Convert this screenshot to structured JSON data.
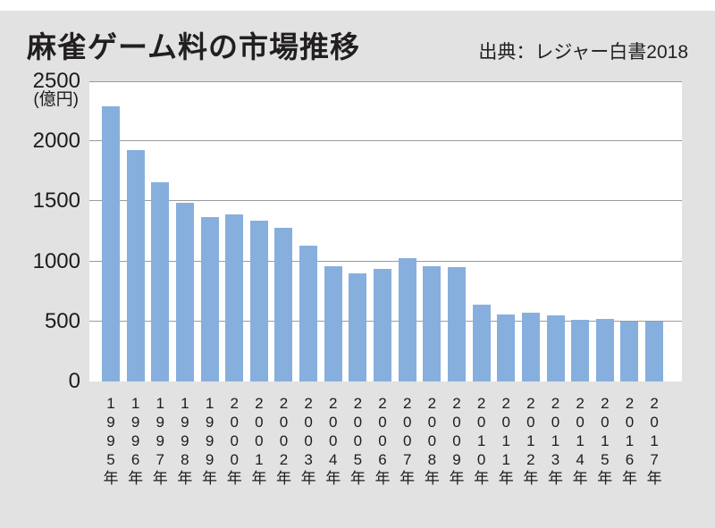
{
  "header": {
    "title": "麻雀ゲーム料の市場推移",
    "source": "出典：レジャー白書2018"
  },
  "chart_data": {
    "type": "bar",
    "title": "麻雀ゲーム料の市場推移",
    "source": "出典：レジャー白書2018",
    "unit_label": "(億円)",
    "categories": [
      "1995年",
      "1996年",
      "1997年",
      "1998年",
      "1999年",
      "2000年",
      "2001年",
      "2002年",
      "2003年",
      "2004年",
      "2005年",
      "2006年",
      "2007年",
      "2008年",
      "2009年",
      "2010年",
      "2011年",
      "2012年",
      "2013年",
      "2014年",
      "2015年",
      "2016年",
      "2017年"
    ],
    "values": [
      2290,
      1930,
      1660,
      1490,
      1370,
      1390,
      1340,
      1280,
      1130,
      960,
      900,
      940,
      1030,
      960,
      950,
      640,
      560,
      570,
      550,
      510,
      520,
      500,
      500
    ],
    "xlabel": "",
    "ylabel": "(億円)",
    "ylim": [
      0,
      2500
    ],
    "y_ticks": [
      0,
      500,
      1000,
      1500,
      2000,
      2500
    ],
    "grid": true,
    "legend_position": "none",
    "colors": {
      "bar": "#87afdd",
      "background": "#e2e2e2",
      "plot_background": "#ffffff",
      "gridline": "#9b9b9b",
      "text": "#221f1f"
    }
  }
}
